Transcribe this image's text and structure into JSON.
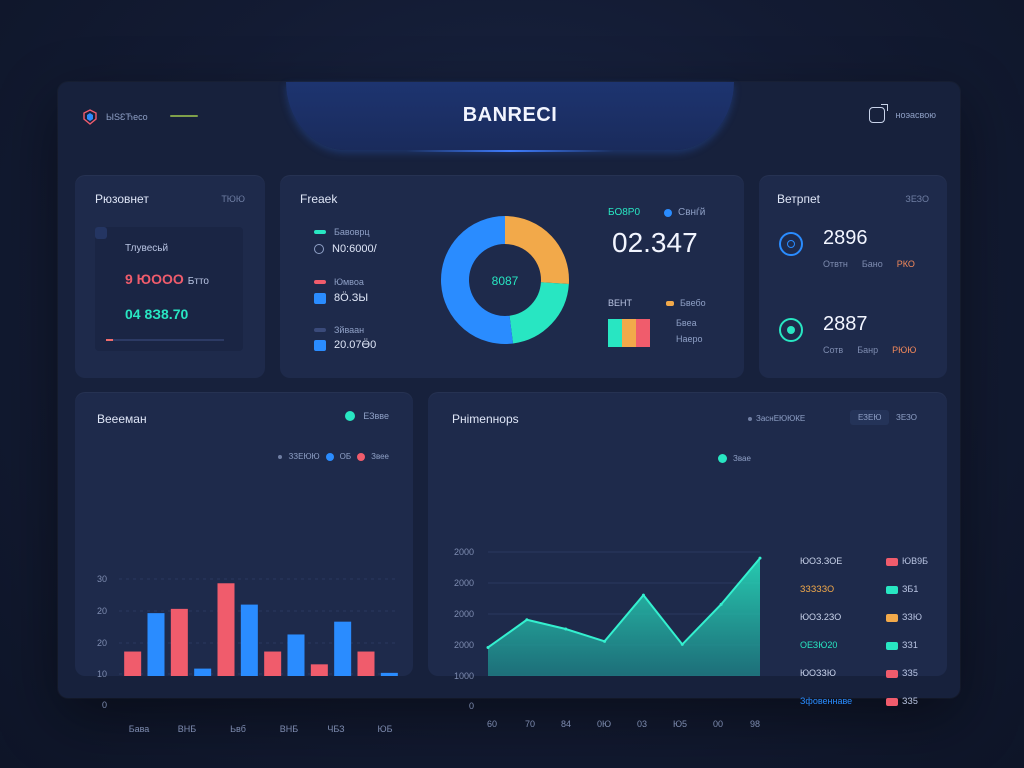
{
  "header": {
    "title": "BANRECI",
    "brand_text": "ЫSԐЋeco",
    "user_text": "ноэасвою"
  },
  "colors": {
    "teal": "#28e6c2",
    "blue": "#2a8cff",
    "red": "#f05c6c",
    "orange": "#f2a94a",
    "bg": "#17213c",
    "card": "#1e2a4b"
  },
  "card1": {
    "title": "Рюзовнет",
    "tag": "ТЮЮ",
    "row1_label": "Тлувесьй",
    "row2_value": "9 ЮООО",
    "row2_unit": "Бтто",
    "row3_value": "04 8З8.70",
    "progress": 0.06
  },
  "card2": {
    "title": "Freaek",
    "legend": [
      {
        "label": "Бавоврц",
        "value": "N0:6000/",
        "color": "#28e6c2"
      },
      {
        "label": "Юмвоа",
        "value": "8Ӧ.ЗЫ",
        "color": "#f05c6c"
      },
      {
        "label": "Зйваан",
        "value": "20.07Ӫ0",
        "color": "#3a4a7a"
      }
    ],
    "donut_center": "8087",
    "donut": [
      {
        "value": 26,
        "color": "#f2a94a"
      },
      {
        "value": 22,
        "color": "#28e6c2"
      },
      {
        "value": 52,
        "color": "#2a8cff"
      }
    ],
    "metric_tag": "БО8Р0",
    "metric_tag2": "Свнѓй",
    "metric_value": "02.347",
    "sub_label": "ВЕНТ",
    "sub_legend": "Бвебо",
    "sub_rows": [
      "Бвеа",
      "Наеро"
    ],
    "mini_bar_colors": [
      "#28e6c2",
      "#f2a94a",
      "#f05c6c"
    ]
  },
  "card3": {
    "title": "Ветрпеt",
    "tag": "ЗЕЗО",
    "stats": [
      {
        "value": "2896",
        "meta1": "Отвтн",
        "meta2": "Бано",
        "meta3": "РКО",
        "ring_color": "#2a8cff"
      },
      {
        "value": "2887",
        "meta1": "Сотв",
        "meta2": "Банр",
        "meta3": "РЮЮ",
        "ring_color": "#28e6c2"
      }
    ]
  },
  "card4": {
    "title": "Веееман",
    "top_legend": "ЕЗвве",
    "legend2": [
      "ЗЗЕЮЮ",
      "ОБ",
      "Звее"
    ],
    "yticks": [
      "30",
      "20",
      "20",
      "10",
      "0"
    ],
    "xlabels": [
      "Бава",
      "ВНБ",
      "Ьвб",
      "ВНБ",
      "ЧБЗ",
      "ЮБ"
    ]
  },
  "card5": {
    "title": "Рніmenнорs",
    "header_legend": "ЗаснЕЮЮКЕ",
    "header_tabs": [
      "ЕЗЕЮ",
      "ЗЕЗО"
    ],
    "series_label": "Звае",
    "yticks": [
      "2000",
      "2000",
      "2000",
      "2000",
      "1000",
      "0"
    ],
    "xlabels": [
      "60",
      "70",
      "84",
      "0Ю",
      "03",
      "Ю5",
      "00",
      "98"
    ],
    "right_list": [
      {
        "label": "ЮОЗ.ЗОЕ",
        "label_color": "#c9d3ea",
        "value": "ЮВ9Б",
        "tag_color": "#f05c6c"
      },
      {
        "label": "ЗЗЗЗЗО",
        "label_color": "#f2a94a",
        "value": "ЗБ1",
        "tag_color": "#28e6c2"
      },
      {
        "label": "ЮОЗ.2ЗО",
        "label_color": "#c9d3ea",
        "value": "ЗЗЮ",
        "tag_color": "#f2a94a"
      },
      {
        "label": "ОЕЗЮ20",
        "label_color": "#28e6c2",
        "value": "ЗЗ1",
        "tag_color": "#28e6c2"
      },
      {
        "label": "ЮОЗЗЮ",
        "label_color": "#c9d3ea",
        "value": "ЗЗ5",
        "tag_color": "#f05c6c"
      },
      {
        "label": "Зфовеннаве",
        "label_color": "#2a8cff",
        "value": "ЗЗ5",
        "tag_color": "#f05c6c"
      }
    ]
  },
  "chart_data": [
    {
      "type": "bar",
      "title": "Веееман",
      "categories": [
        "Бава",
        "ВНБ",
        "Ьвб",
        "ВНБ",
        "ЧБЗ",
        "ЮБ"
      ],
      "ylim": [
        0,
        30
      ],
      "series": [
        {
          "name": "ОБ",
          "color": "#2a8cff",
          "values": [
            22,
            9,
            24,
            17,
            20,
            8
          ]
        },
        {
          "name": "Звее",
          "color": "#f05c6c",
          "values": [
            13,
            23,
            29,
            13,
            10,
            13
          ]
        }
      ],
      "bar_order": [
        {
          "s": 1,
          "i": 0
        },
        {
          "s": 0,
          "i": 0
        },
        {
          "s": 1,
          "i": 1
        },
        {
          "s": 0,
          "i": 1
        },
        {
          "s": 1,
          "i": 2
        },
        {
          "s": 0,
          "i": 2
        },
        {
          "s": 1,
          "i": 3
        },
        {
          "s": 0,
          "i": 3
        },
        {
          "s": 1,
          "i": 4
        },
        {
          "s": 0,
          "i": 4
        },
        {
          "s": 1,
          "i": 5
        },
        {
          "s": 0,
          "i": 5
        }
      ]
    },
    {
      "type": "area",
      "title": "Рніmenнорs",
      "x": [
        "60",
        "70",
        "84",
        "0Ю",
        "03",
        "Ю5",
        "00",
        "98"
      ],
      "ylim": [
        0,
        2500
      ],
      "series": [
        {
          "name": "Звае",
          "color": "#28e6c2",
          "values": [
            950,
            1400,
            1250,
            1050,
            1800,
            1000,
            1650,
            2400
          ]
        }
      ]
    }
  ]
}
